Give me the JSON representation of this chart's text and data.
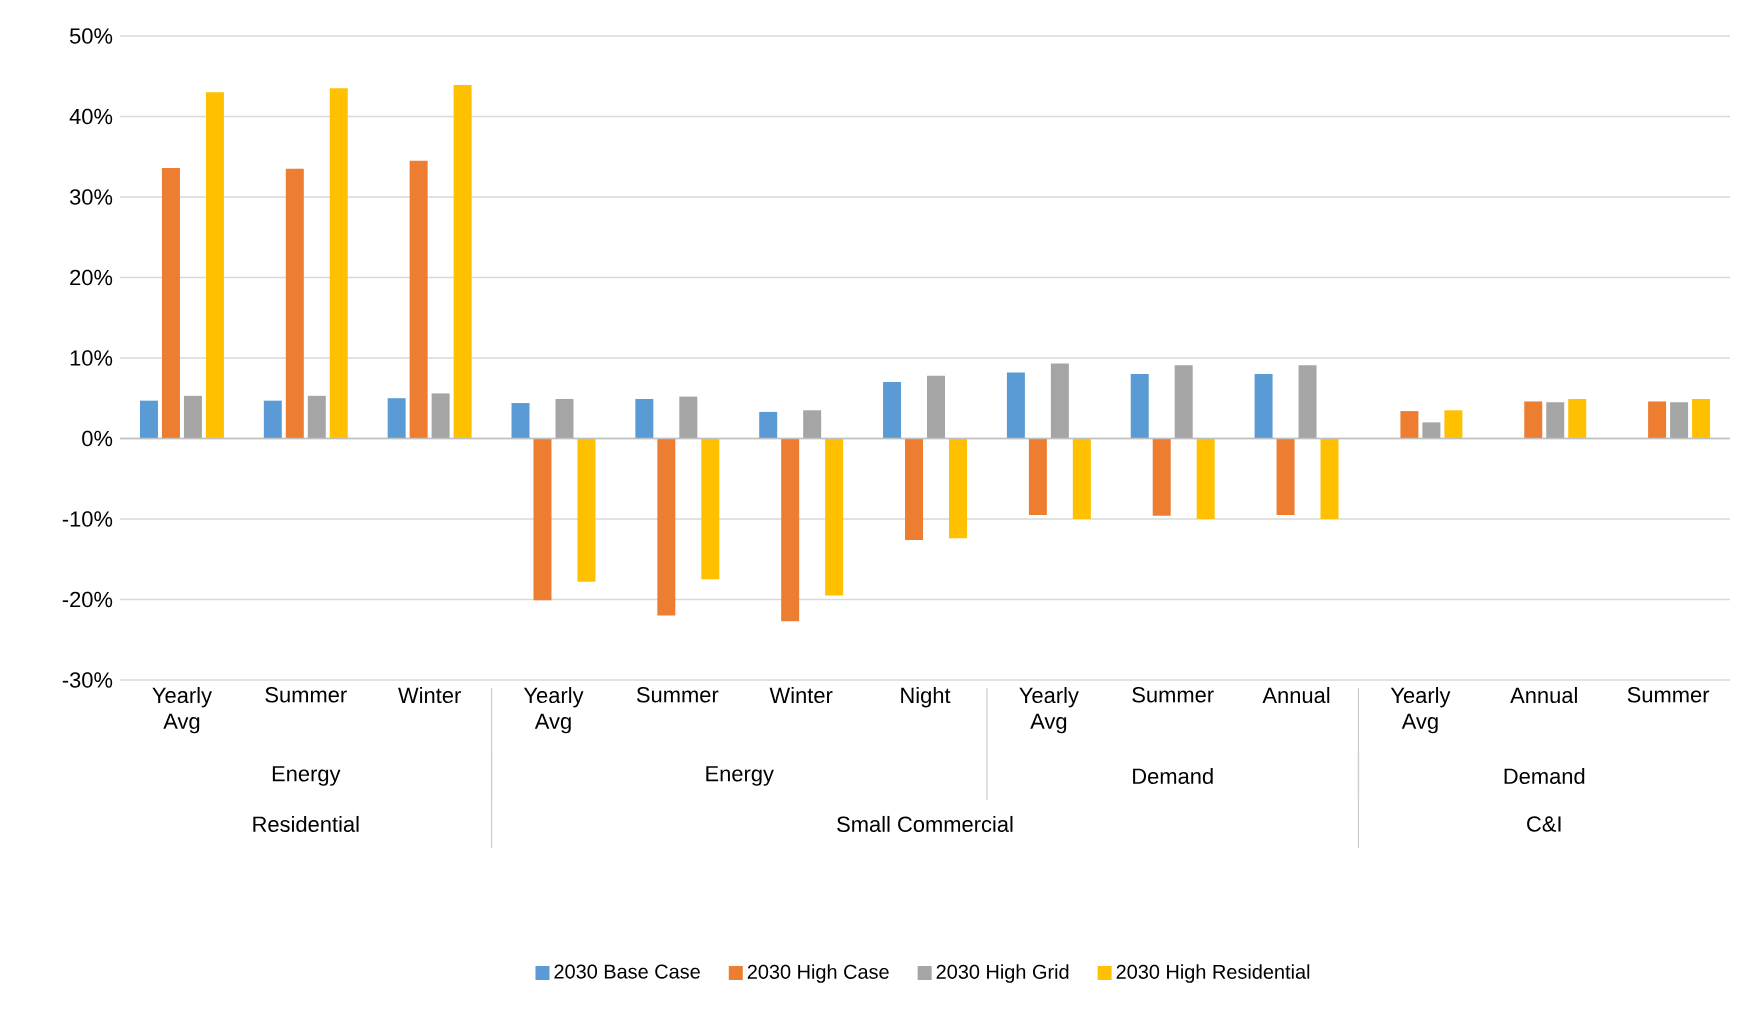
{
  "chart_data": {
    "type": "bar",
    "categories": [
      "Yearly Avg",
      "Summer",
      "Winter",
      "Yearly Avg",
      "Summer",
      "Winter",
      "Night",
      "Yearly Avg",
      "Summer",
      "Annual",
      "Yearly Avg",
      "Annual",
      "Summer"
    ],
    "series": [
      {
        "name": "2030 Base Case",
        "color": "#5b9bd5",
        "values": [
          4.7,
          4.7,
          5.0,
          4.4,
          4.9,
          3.3,
          7.0,
          8.2,
          8.0,
          8.0,
          null,
          null,
          null
        ]
      },
      {
        "name": "2030 High Case",
        "color": "#ed7d31",
        "values": [
          33.6,
          33.5,
          34.5,
          -20.1,
          -22.0,
          -22.7,
          -12.6,
          -9.5,
          -9.6,
          -9.5,
          3.4,
          4.6,
          4.6
        ]
      },
      {
        "name": "2030 High Grid",
        "color": "#a5a5a5",
        "values": [
          5.3,
          5.3,
          5.6,
          4.9,
          5.2,
          3.5,
          7.8,
          9.3,
          9.1,
          9.1,
          2.0,
          4.5,
          4.5
        ]
      },
      {
        "name": "2030 High Residential",
        "color": "#ffc000",
        "values": [
          43.0,
          43.5,
          43.9,
          -17.8,
          -17.5,
          -19.5,
          -12.4,
          -10.0,
          -10.0,
          -10.0,
          3.5,
          4.9,
          4.9
        ]
      }
    ],
    "ylim": [
      -30,
      50
    ],
    "yticks": [
      {
        "value": -30,
        "label": "-30%"
      },
      {
        "value": -20,
        "label": "-20%"
      },
      {
        "value": -10,
        "label": "-10%"
      },
      {
        "value": 0,
        "label": "0%"
      },
      {
        "value": 10,
        "label": "10%"
      },
      {
        "value": 20,
        "label": "20%"
      },
      {
        "value": 30,
        "label": "30%"
      },
      {
        "value": 40,
        "label": "40%"
      },
      {
        "value": 50,
        "label": "50%"
      }
    ],
    "grid": "y",
    "legend": "bottom",
    "annotations": [
      "Energy",
      "Energy",
      "Demand",
      "Demand",
      "Residential",
      "Small Commercial",
      "C&I"
    ]
  }
}
